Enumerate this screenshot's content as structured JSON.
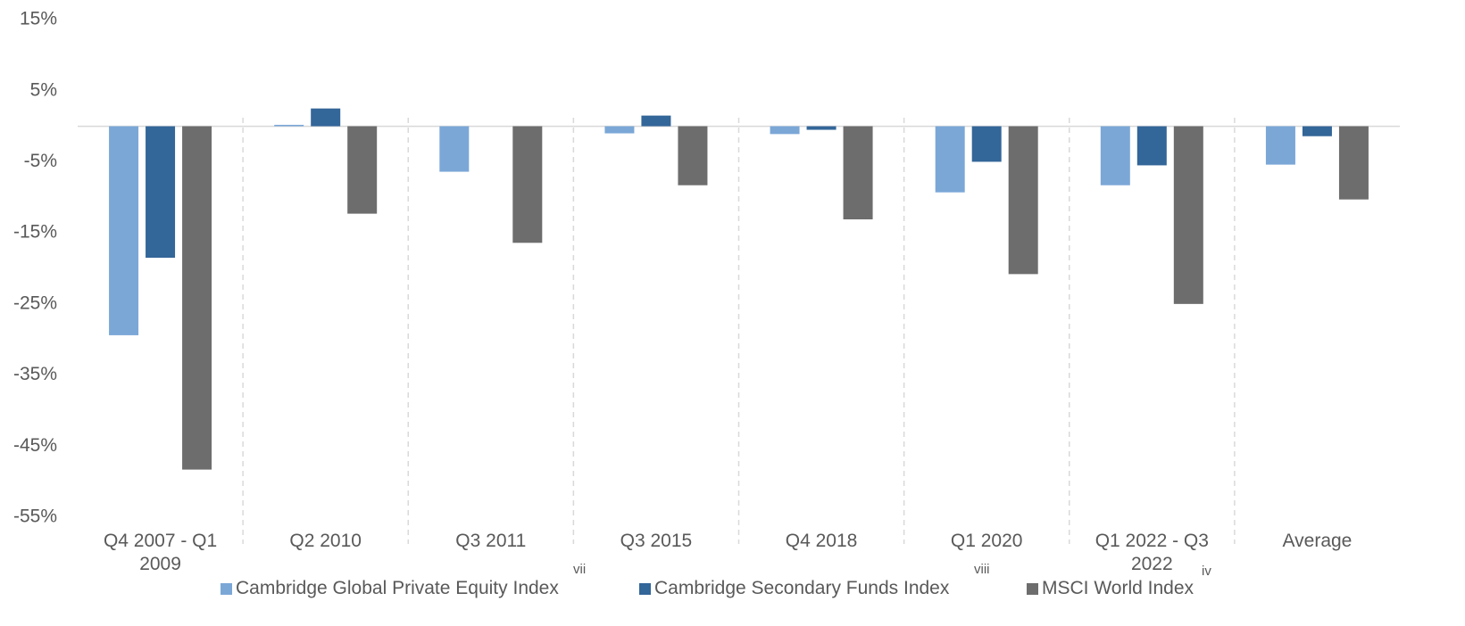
{
  "chart_data": {
    "type": "bar",
    "categories": [
      "Q4 2007 - Q1 2009",
      "Q2 2010",
      "Q3 2011",
      "Q3 2015",
      "Q4 2018",
      "Q1 2020",
      "Q1 2022 - Q3 2022",
      "Average"
    ],
    "series": [
      {
        "name": "Cambridge Global Private Equity Index",
        "color": "#7ba7d7",
        "values": [
          -29.4,
          0.2,
          -6.4,
          -1.0,
          -1.1,
          -9.3,
          -8.3,
          -5.4
        ]
      },
      {
        "name": "Cambridge Secondary Funds Index",
        "color": "#336699",
        "values": [
          -18.5,
          2.5,
          0,
          1.5,
          -0.5,
          -5.0,
          -5.5,
          -1.4
        ]
      },
      {
        "name": "MSCI World Index",
        "color": "#6d6d6d",
        "values": [
          -48.3,
          -12.3,
          -16.4,
          -8.3,
          -13.1,
          -20.8,
          -25.0,
          -10.3
        ]
      }
    ],
    "ylim": [
      -55,
      15
    ],
    "yticks": [
      {
        "value": 15,
        "label": "15%"
      },
      {
        "value": 5,
        "label": "5%"
      },
      {
        "value": -5,
        "label": "-5%"
      },
      {
        "value": -15,
        "label": "-15%"
      },
      {
        "value": -25,
        "label": "-25%"
      },
      {
        "value": -35,
        "label": "-35%"
      },
      {
        "value": -45,
        "label": "-45%"
      },
      {
        "value": -55,
        "label": "-55%"
      }
    ],
    "annotations": [
      "vii",
      "viii",
      "iv"
    ],
    "legend": "bottom"
  }
}
